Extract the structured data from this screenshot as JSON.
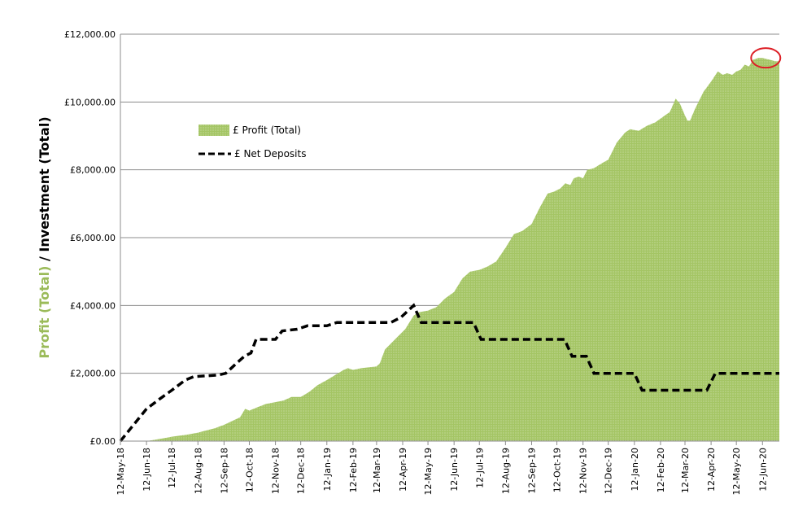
{
  "chart_data": {
    "type": "area",
    "ylabel_parts": [
      {
        "text": "Profit (Total)",
        "color": "#9bbb59"
      },
      {
        "text": " / Investment (Total)",
        "color": "#000000"
      }
    ],
    "ylim": [
      0,
      12000
    ],
    "yticks": [
      0,
      2000,
      4000,
      6000,
      8000,
      10000,
      12000
    ],
    "ytick_labels": [
      "£0.00",
      "£2,000.00",
      "£4,000.00",
      "£6,000.00",
      "£8,000.00",
      "£10,000.00",
      "£12,000.00"
    ],
    "xlim": [
      "2018-05-12",
      "2020-07-02"
    ],
    "xticks": [
      "2018-05-12",
      "2018-06-12",
      "2018-07-12",
      "2018-08-12",
      "2018-09-12",
      "2018-10-12",
      "2018-11-12",
      "2018-12-12",
      "2019-01-12",
      "2019-02-12",
      "2019-03-12",
      "2019-04-12",
      "2019-05-12",
      "2019-06-12",
      "2019-07-12",
      "2019-08-12",
      "2019-09-12",
      "2019-10-12",
      "2019-11-12",
      "2019-12-12",
      "2020-01-12",
      "2020-02-12",
      "2020-03-12",
      "2020-04-12",
      "2020-05-12",
      "2020-06-12"
    ],
    "xtick_labels": [
      "12-May-18",
      "12-Jun-18",
      "12-Jul-18",
      "12-Aug-18",
      "12-Sep-18",
      "12-Oct-18",
      "12-Nov-18",
      "12-Dec-18",
      "12-Jan-19",
      "12-Feb-19",
      "12-Mar-19",
      "12-Apr-19",
      "12-May-19",
      "12-Jun-19",
      "12-Jul-19",
      "12-Aug-19",
      "12-Sep-19",
      "12-Oct-19",
      "12-Nov-19",
      "12-Dec-19",
      "12-Jan-20",
      "12-Feb-20",
      "12-Mar-20",
      "12-Apr-20",
      "12-May-20",
      "12-Jun-20"
    ],
    "grid": "horizontal",
    "legend_position": "upper-left",
    "series": [
      {
        "name": "£ Profit (Total)",
        "kind": "area",
        "color": "#9bbb59",
        "points": [
          [
            "2018-05-12",
            0
          ],
          [
            "2018-06-12",
            0
          ],
          [
            "2018-07-01",
            80
          ],
          [
            "2018-07-12",
            130
          ],
          [
            "2018-08-01",
            200
          ],
          [
            "2018-08-12",
            250
          ],
          [
            "2018-09-01",
            380
          ],
          [
            "2018-09-12",
            480
          ],
          [
            "2018-10-01",
            700
          ],
          [
            "2018-10-07",
            950
          ],
          [
            "2018-10-12",
            900
          ],
          [
            "2018-10-22",
            1000
          ],
          [
            "2018-11-01",
            1100
          ],
          [
            "2018-11-12",
            1150
          ],
          [
            "2018-11-22",
            1200
          ],
          [
            "2018-12-01",
            1300
          ],
          [
            "2018-12-12",
            1300
          ],
          [
            "2018-12-22",
            1450
          ],
          [
            "2019-01-01",
            1650
          ],
          [
            "2019-01-12",
            1800
          ],
          [
            "2019-01-22",
            1950
          ],
          [
            "2019-02-01",
            2100
          ],
          [
            "2019-02-06",
            2150
          ],
          [
            "2019-02-12",
            2100
          ],
          [
            "2019-02-22",
            2150
          ],
          [
            "2019-03-12",
            2200
          ],
          [
            "2019-03-16",
            2300
          ],
          [
            "2019-03-22",
            2700
          ],
          [
            "2019-04-05",
            3050
          ],
          [
            "2019-04-15",
            3300
          ],
          [
            "2019-04-25",
            3700
          ],
          [
            "2019-05-01",
            3800
          ],
          [
            "2019-05-12",
            3850
          ],
          [
            "2019-05-22",
            3950
          ],
          [
            "2019-06-01",
            4200
          ],
          [
            "2019-06-12",
            4400
          ],
          [
            "2019-06-22",
            4800
          ],
          [
            "2019-07-01",
            5000
          ],
          [
            "2019-07-12",
            5050
          ],
          [
            "2019-07-22",
            5150
          ],
          [
            "2019-08-01",
            5300
          ],
          [
            "2019-08-12",
            5700
          ],
          [
            "2019-08-22",
            6100
          ],
          [
            "2019-09-01",
            6200
          ],
          [
            "2019-09-12",
            6400
          ],
          [
            "2019-09-22",
            6900
          ],
          [
            "2019-10-01",
            7300
          ],
          [
            "2019-10-08",
            7350
          ],
          [
            "2019-10-16",
            7450
          ],
          [
            "2019-10-22",
            7600
          ],
          [
            "2019-10-28",
            7550
          ],
          [
            "2019-11-01",
            7750
          ],
          [
            "2019-11-07",
            7800
          ],
          [
            "2019-11-12",
            7750
          ],
          [
            "2019-11-17",
            8000
          ],
          [
            "2019-11-25",
            8050
          ],
          [
            "2019-12-05",
            8200
          ],
          [
            "2019-12-12",
            8300
          ],
          [
            "2019-12-22",
            8800
          ],
          [
            "2020-01-01",
            9100
          ],
          [
            "2020-01-07",
            9200
          ],
          [
            "2020-01-17",
            9150
          ],
          [
            "2020-01-27",
            9300
          ],
          [
            "2020-02-06",
            9400
          ],
          [
            "2020-02-17",
            9600
          ],
          [
            "2020-02-23",
            9700
          ],
          [
            "2020-03-01",
            10100
          ],
          [
            "2020-03-06",
            9950
          ],
          [
            "2020-03-12",
            9600
          ],
          [
            "2020-03-15",
            9450
          ],
          [
            "2020-03-18",
            9450
          ],
          [
            "2020-03-24",
            9800
          ],
          [
            "2020-04-03",
            10300
          ],
          [
            "2020-04-12",
            10600
          ],
          [
            "2020-04-20",
            10900
          ],
          [
            "2020-04-26",
            10800
          ],
          [
            "2020-05-01",
            10850
          ],
          [
            "2020-05-07",
            10800
          ],
          [
            "2020-05-12",
            10900
          ],
          [
            "2020-05-17",
            10950
          ],
          [
            "2020-05-22",
            11100
          ],
          [
            "2020-05-27",
            11050
          ],
          [
            "2020-06-01",
            11250
          ],
          [
            "2020-06-07",
            11300
          ],
          [
            "2020-06-12",
            11300
          ],
          [
            "2020-06-20",
            11250
          ],
          [
            "2020-06-27",
            11200
          ],
          [
            "2020-07-02",
            11200
          ]
        ]
      },
      {
        "name": "£ Net Deposits",
        "kind": "line",
        "style": "dashed",
        "color": "#000000",
        "points": [
          [
            "2018-05-12",
            0
          ],
          [
            "2018-05-25",
            400
          ],
          [
            "2018-06-12",
            950
          ],
          [
            "2018-06-28",
            1250
          ],
          [
            "2018-07-12",
            1500
          ],
          [
            "2018-07-28",
            1800
          ],
          [
            "2018-08-07",
            1900
          ],
          [
            "2018-09-05",
            1950
          ],
          [
            "2018-09-14",
            2000
          ],
          [
            "2018-09-27",
            2300
          ],
          [
            "2018-10-06",
            2500
          ],
          [
            "2018-10-14",
            2600
          ],
          [
            "2018-10-20",
            3000
          ],
          [
            "2018-11-12",
            3000
          ],
          [
            "2018-11-20",
            3250
          ],
          [
            "2018-12-08",
            3300
          ],
          [
            "2018-12-20",
            3400
          ],
          [
            "2019-01-12",
            3400
          ],
          [
            "2019-01-24",
            3500
          ],
          [
            "2019-03-29",
            3500
          ],
          [
            "2019-04-10",
            3650
          ],
          [
            "2019-04-25",
            4000
          ],
          [
            "2019-05-04",
            3500
          ],
          [
            "2019-07-05",
            3500
          ],
          [
            "2019-07-14",
            3000
          ],
          [
            "2019-10-21",
            3000
          ],
          [
            "2019-10-30",
            2500
          ],
          [
            "2019-11-16",
            2500
          ],
          [
            "2019-11-25",
            2000
          ],
          [
            "2020-01-12",
            2000
          ],
          [
            "2020-01-21",
            1500
          ],
          [
            "2020-04-07",
            1500
          ],
          [
            "2020-04-17",
            2000
          ],
          [
            "2020-07-02",
            2000
          ]
        ]
      }
    ],
    "annotations": [
      {
        "type": "circle",
        "color": "#dd1f26",
        "x": "2020-06-12",
        "y": 11300
      }
    ]
  }
}
